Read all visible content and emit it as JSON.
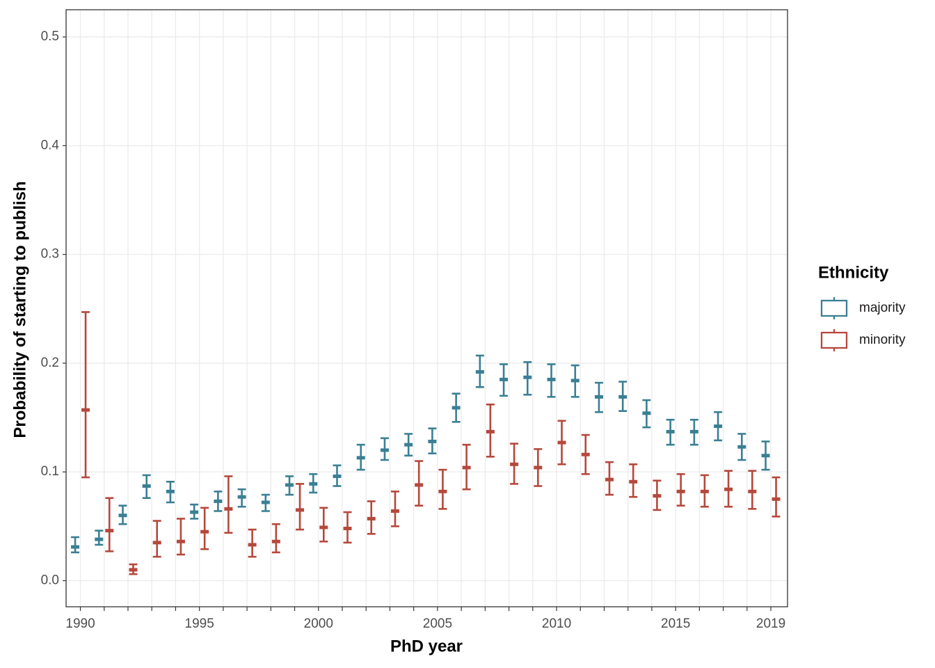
{
  "chart_data": {
    "type": "errorbar",
    "x_label": "PhD year",
    "y_label": "Probability of starting to publish",
    "legend_title": "Ethnicity",
    "legend_position": "right",
    "grid": true,
    "xlim": [
      1989.4,
      2019.7
    ],
    "ylim": [
      -0.024,
      0.525
    ],
    "xticks": [
      1990,
      1995,
      2000,
      2005,
      2010,
      2015,
      2019
    ],
    "yticks": [
      {
        "value": 0,
        "label": "0.0"
      },
      {
        "value": 0.1,
        "label": "0.1"
      },
      {
        "value": 0.2,
        "label": "0.2"
      },
      {
        "value": 0.3,
        "label": "0.3"
      },
      {
        "value": 0.4,
        "label": "0.4"
      },
      {
        "value": 0.5,
        "label": "0.5"
      }
    ],
    "x": [
      1990,
      1991,
      1992,
      1993,
      1994,
      1995,
      1996,
      1997,
      1998,
      1999,
      2000,
      2001,
      2002,
      2003,
      2004,
      2005,
      2006,
      2007,
      2008,
      2009,
      2010,
      2011,
      2012,
      2013,
      2014,
      2015,
      2016,
      2017,
      2018,
      2019
    ],
    "series": [
      {
        "name": "majority",
        "color": "#3a7f94",
        "values": [
          0.031,
          0.038,
          0.06,
          0.087,
          0.082,
          0.063,
          0.073,
          0.077,
          0.072,
          0.088,
          0.089,
          0.096,
          0.113,
          0.12,
          0.125,
          0.128,
          0.159,
          0.192,
          0.185,
          0.187,
          0.185,
          0.184,
          0.169,
          0.169,
          0.154,
          0.137,
          0.137,
          0.142,
          0.123,
          0.115
        ],
        "lower": [
          0.026,
          0.033,
          0.052,
          0.076,
          0.072,
          0.057,
          0.064,
          0.068,
          0.064,
          0.079,
          0.081,
          0.087,
          0.102,
          0.111,
          0.115,
          0.117,
          0.146,
          0.178,
          0.17,
          0.171,
          0.169,
          0.169,
          0.155,
          0.156,
          0.141,
          0.125,
          0.125,
          0.129,
          0.111,
          0.102
        ],
        "upper": [
          0.04,
          0.046,
          0.069,
          0.097,
          0.091,
          0.07,
          0.082,
          0.084,
          0.079,
          0.096,
          0.098,
          0.106,
          0.125,
          0.131,
          0.135,
          0.14,
          0.172,
          0.207,
          0.199,
          0.201,
          0.199,
          0.198,
          0.182,
          0.183,
          0.166,
          0.148,
          0.148,
          0.155,
          0.135,
          0.128
        ]
      },
      {
        "name": "minority",
        "color": "#b5483b",
        "values": [
          0.157,
          0.046,
          0.01,
          0.035,
          0.036,
          0.045,
          0.066,
          0.033,
          0.036,
          0.065,
          0.049,
          0.048,
          0.057,
          0.064,
          0.088,
          0.082,
          0.104,
          0.137,
          0.107,
          0.104,
          0.127,
          0.116,
          0.093,
          0.091,
          0.078,
          0.082,
          0.082,
          0.084,
          0.082,
          0.075
        ],
        "lower": [
          0.095,
          0.027,
          0.006,
          0.022,
          0.024,
          0.029,
          0.044,
          0.022,
          0.026,
          0.047,
          0.036,
          0.035,
          0.043,
          0.05,
          0.069,
          0.066,
          0.084,
          0.114,
          0.089,
          0.087,
          0.107,
          0.098,
          0.079,
          0.077,
          0.065,
          0.069,
          0.068,
          0.068,
          0.066,
          0.059
        ],
        "upper": [
          0.247,
          0.076,
          0.015,
          0.055,
          0.057,
          0.067,
          0.096,
          0.047,
          0.052,
          0.089,
          0.067,
          0.063,
          0.073,
          0.082,
          0.11,
          0.102,
          0.125,
          0.162,
          0.126,
          0.121,
          0.147,
          0.134,
          0.109,
          0.107,
          0.092,
          0.098,
          0.097,
          0.101,
          0.101,
          0.095
        ]
      }
    ]
  }
}
